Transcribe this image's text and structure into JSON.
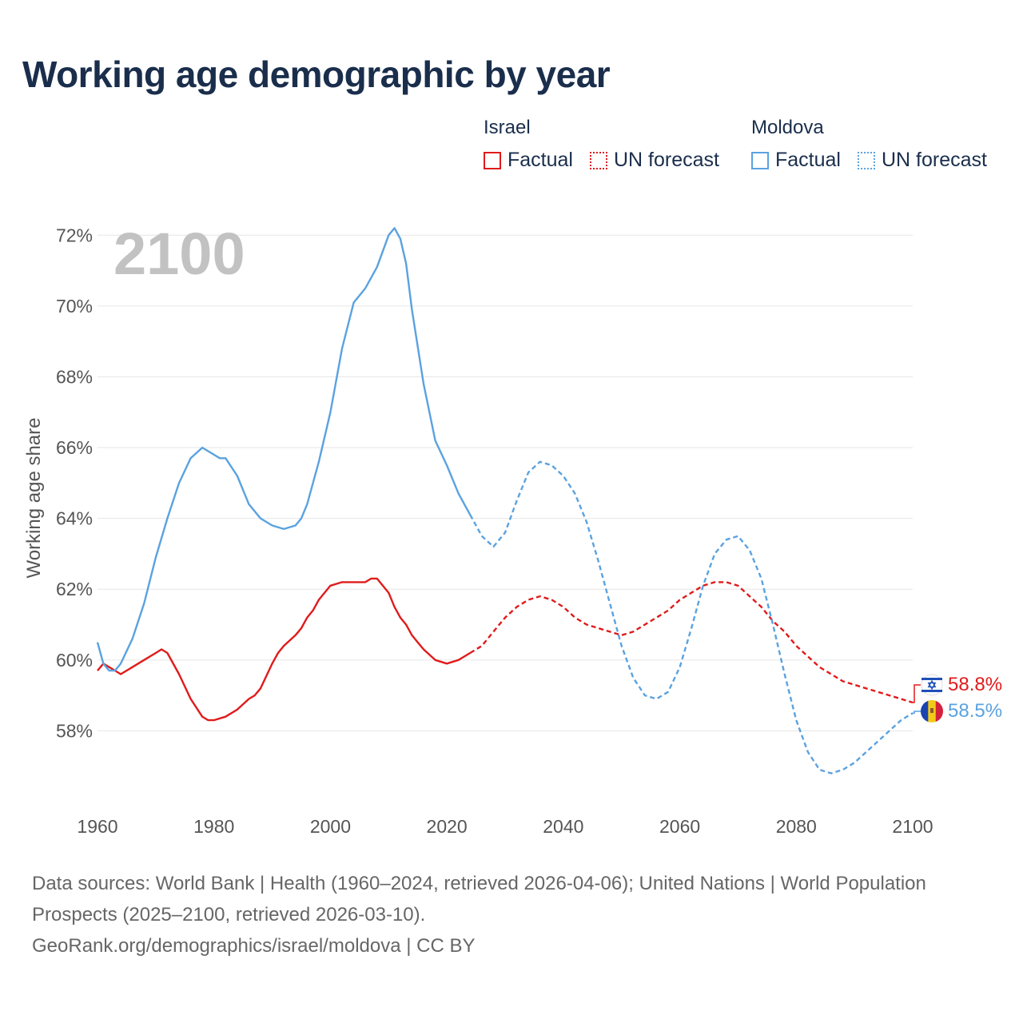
{
  "title": "Working age demographic by year",
  "legend": {
    "groups": [
      {
        "country": "Israel",
        "factual": "Factual",
        "forecast": "UN forecast",
        "color": "#e01b1b"
      },
      {
        "country": "Moldova",
        "factual": "Factual",
        "forecast": "UN forecast",
        "color": "#5aa2e0"
      }
    ]
  },
  "year_watermark": "2100",
  "end_labels": {
    "israel": "58.8%",
    "moldova": "58.5%"
  },
  "source": {
    "line1": "Data sources: World Bank | Health (1960–2024, retrieved 2026-04-06); United Nations | World Population Prospects (2025–2100, retrieved 2026-03-10).",
    "line2": "GeoRank.org/demographics/israel/moldova | CC BY"
  },
  "icons": {
    "israel_flag": "israel-flag-icon",
    "moldova_flag": "moldova-flag-icon"
  },
  "chart_data": {
    "type": "line",
    "title": "Working age demographic by year",
    "xlabel": "",
    "ylabel": "Working age share",
    "xlim": [
      1960,
      2100
    ],
    "ylim": [
      56,
      73
    ],
    "x_ticks": [
      1960,
      1980,
      2000,
      2020,
      2040,
      2060,
      2080,
      2100
    ],
    "y_ticks": [
      58,
      60,
      62,
      64,
      66,
      68,
      70,
      72
    ],
    "y_tick_labels": [
      "58%",
      "60%",
      "62%",
      "64%",
      "66%",
      "68%",
      "70%",
      "72%"
    ],
    "factual_until": 2024,
    "series": [
      {
        "name": "Israel",
        "color": "#e01b1b",
        "x": [
          1960,
          1961,
          1962,
          1963,
          1964,
          1966,
          1968,
          1970,
          1971,
          1972,
          1974,
          1976,
          1978,
          1979,
          1980,
          1982,
          1984,
          1986,
          1987,
          1988,
          1990,
          1991,
          1992,
          1994,
          1995,
          1996,
          1997,
          1998,
          2000,
          2002,
          2004,
          2006,
          2007,
          2008,
          2010,
          2011,
          2012,
          2013,
          2014,
          2015,
          2016,
          2018,
          2020,
          2022,
          2023,
          2024,
          2026,
          2028,
          2030,
          2032,
          2034,
          2036,
          2038,
          2040,
          2042,
          2044,
          2046,
          2048,
          2050,
          2052,
          2054,
          2056,
          2058,
          2060,
          2062,
          2064,
          2066,
          2068,
          2070,
          2072,
          2074,
          2076,
          2078,
          2080,
          2082,
          2084,
          2086,
          2088,
          2090,
          2092,
          2094,
          2096,
          2098,
          2100
        ],
        "values": [
          59.7,
          59.9,
          59.8,
          59.7,
          59.6,
          59.8,
          60.0,
          60.2,
          60.3,
          60.2,
          59.6,
          58.9,
          58.4,
          58.3,
          58.3,
          58.4,
          58.6,
          58.9,
          59.0,
          59.2,
          59.9,
          60.2,
          60.4,
          60.7,
          60.9,
          61.2,
          61.4,
          61.7,
          62.1,
          62.2,
          62.2,
          62.2,
          62.3,
          62.3,
          61.9,
          61.5,
          61.2,
          61.0,
          60.7,
          60.5,
          60.3,
          60.0,
          59.9,
          60.0,
          60.1,
          60.2,
          60.4,
          60.8,
          61.2,
          61.5,
          61.7,
          61.8,
          61.7,
          61.5,
          61.2,
          61.0,
          60.9,
          60.8,
          60.7,
          60.8,
          61.0,
          61.2,
          61.4,
          61.7,
          61.9,
          62.1,
          62.2,
          62.2,
          62.1,
          61.8,
          61.5,
          61.1,
          60.8,
          60.4,
          60.1,
          59.8,
          59.6,
          59.4,
          59.3,
          59.2,
          59.1,
          59.0,
          58.9,
          58.8
        ]
      },
      {
        "name": "Moldova",
        "color": "#5aa2e0",
        "x": [
          1960,
          1961,
          1962,
          1963,
          1964,
          1966,
          1968,
          1970,
          1972,
          1974,
          1976,
          1978,
          1980,
          1981,
          1982,
          1984,
          1986,
          1988,
          1990,
          1992,
          1994,
          1995,
          1996,
          1998,
          2000,
          2002,
          2004,
          2006,
          2008,
          2010,
          2011,
          2012,
          2013,
          2014,
          2016,
          2018,
          2020,
          2022,
          2024,
          2026,
          2028,
          2030,
          2032,
          2034,
          2036,
          2038,
          2040,
          2042,
          2044,
          2046,
          2048,
          2050,
          2052,
          2054,
          2056,
          2058,
          2060,
          2062,
          2064,
          2066,
          2068,
          2070,
          2072,
          2074,
          2076,
          2078,
          2080,
          2082,
          2084,
          2086,
          2088,
          2090,
          2092,
          2094,
          2096,
          2098,
          2100
        ],
        "values": [
          60.5,
          59.9,
          59.7,
          59.7,
          59.9,
          60.6,
          61.6,
          62.9,
          64.0,
          65.0,
          65.7,
          66.0,
          65.8,
          65.7,
          65.7,
          65.2,
          64.4,
          64.0,
          63.8,
          63.7,
          63.8,
          64.0,
          64.4,
          65.6,
          67.0,
          68.8,
          70.1,
          70.5,
          71.1,
          72.0,
          72.2,
          71.9,
          71.2,
          69.9,
          67.8,
          66.2,
          65.5,
          64.7,
          64.1,
          63.5,
          63.2,
          63.6,
          64.5,
          65.3,
          65.6,
          65.5,
          65.2,
          64.7,
          63.9,
          62.8,
          61.6,
          60.4,
          59.5,
          59.0,
          58.9,
          59.1,
          59.8,
          60.9,
          62.1,
          63.0,
          63.4,
          63.5,
          63.1,
          62.3,
          61.0,
          59.6,
          58.3,
          57.4,
          56.9,
          56.8,
          56.9,
          57.1,
          57.4,
          57.7,
          58.0,
          58.3,
          58.5
        ]
      }
    ]
  }
}
